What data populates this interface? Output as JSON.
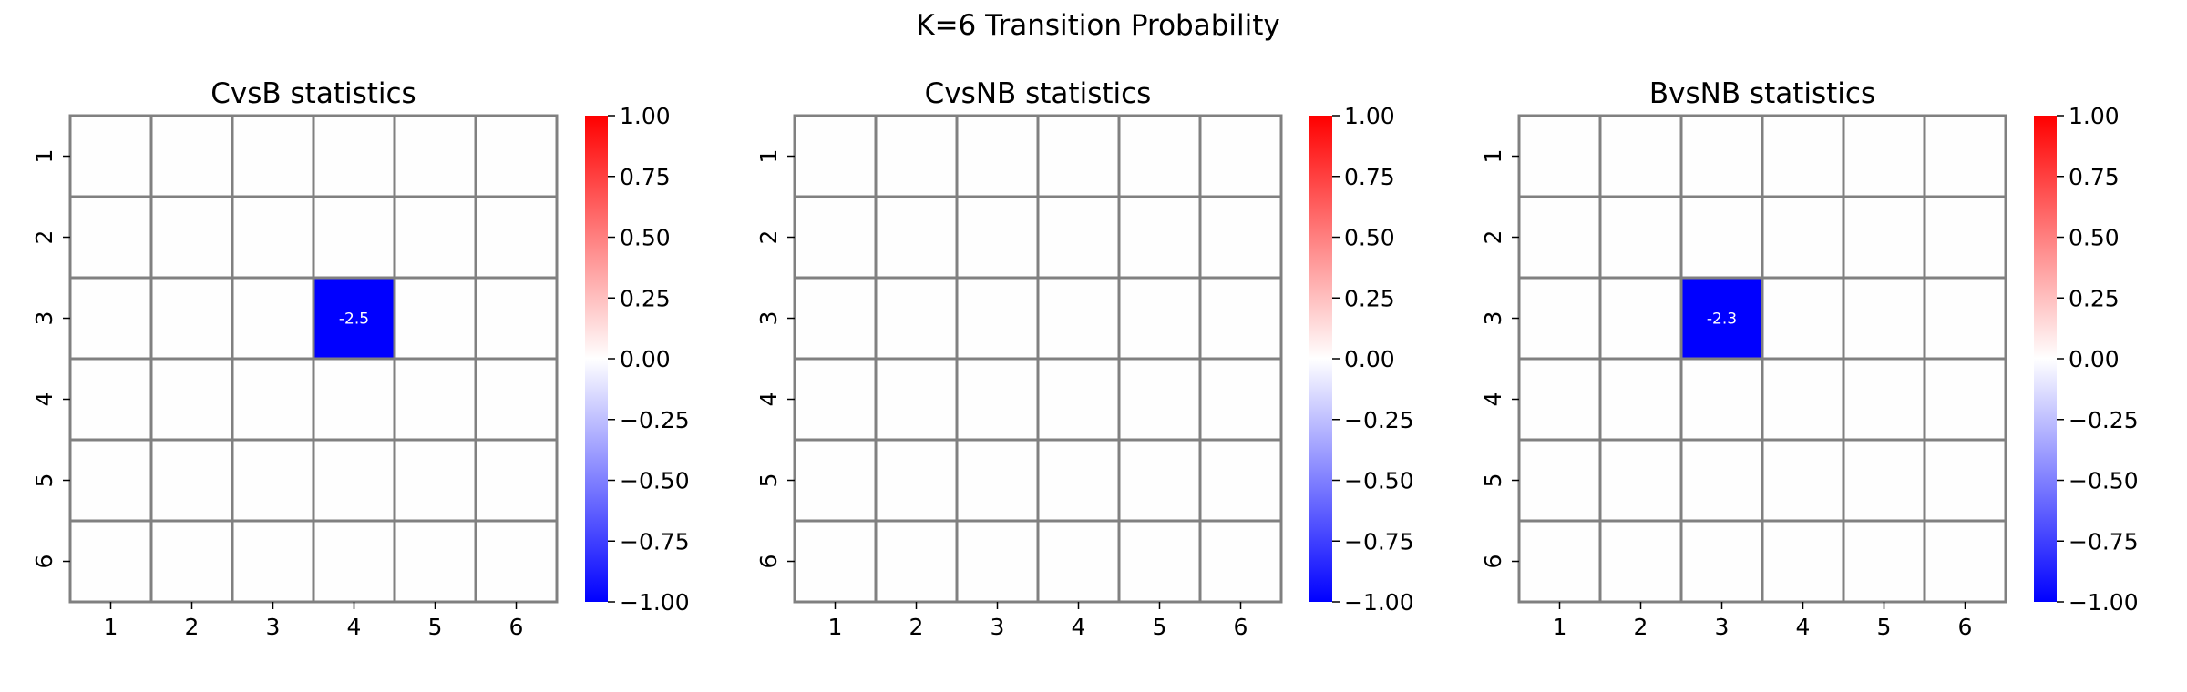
{
  "figure_title": "K=6 Transition Probability",
  "chart_data": [
    {
      "type": "heatmap",
      "title": "CvsB statistics",
      "x_ticks": [
        "1",
        "2",
        "3",
        "4",
        "5",
        "6"
      ],
      "y_ticks": [
        "1",
        "2",
        "3",
        "4",
        "5",
        "6"
      ],
      "cells": [
        {
          "row": 3,
          "col": 4,
          "value": -2.5,
          "label": "-2.5"
        }
      ],
      "color_range": [
        -1.0,
        1.0
      ],
      "colorbar_ticks": [
        "1.00",
        "0.75",
        "0.50",
        "0.25",
        "0.00",
        "−0.25",
        "−0.50",
        "−0.75",
        "−1.00"
      ],
      "colorbar_tick_values": [
        1.0,
        0.75,
        0.5,
        0.25,
        0.0,
        -0.25,
        -0.5,
        -0.75,
        -1.0
      ],
      "colormap": [
        "#0000ff",
        "#ffffff",
        "#ff0000"
      ],
      "grid_color": "#808080"
    },
    {
      "type": "heatmap",
      "title": "CvsNB statistics",
      "x_ticks": [
        "1",
        "2",
        "3",
        "4",
        "5",
        "6"
      ],
      "y_ticks": [
        "1",
        "2",
        "3",
        "4",
        "5",
        "6"
      ],
      "cells": [],
      "color_range": [
        -1.0,
        1.0
      ],
      "colorbar_ticks": [
        "1.00",
        "0.75",
        "0.50",
        "0.25",
        "0.00",
        "−0.25",
        "−0.50",
        "−0.75",
        "−1.00"
      ],
      "colorbar_tick_values": [
        1.0,
        0.75,
        0.5,
        0.25,
        0.0,
        -0.25,
        -0.5,
        -0.75,
        -1.0
      ],
      "colormap": [
        "#0000ff",
        "#ffffff",
        "#ff0000"
      ],
      "grid_color": "#808080"
    },
    {
      "type": "heatmap",
      "title": "BvsNB statistics",
      "x_ticks": [
        "1",
        "2",
        "3",
        "4",
        "5",
        "6"
      ],
      "y_ticks": [
        "1",
        "2",
        "3",
        "4",
        "5",
        "6"
      ],
      "cells": [
        {
          "row": 3,
          "col": 3,
          "value": -2.3,
          "label": "-2.3"
        }
      ],
      "color_range": [
        -1.0,
        1.0
      ],
      "colorbar_ticks": [
        "1.00",
        "0.75",
        "0.50",
        "0.25",
        "0.00",
        "−0.25",
        "−0.50",
        "−0.75",
        "−1.00"
      ],
      "colorbar_tick_values": [
        1.0,
        0.75,
        0.5,
        0.25,
        0.0,
        -0.25,
        -0.5,
        -0.75,
        -1.0
      ],
      "colormap": [
        "#0000ff",
        "#ffffff",
        "#ff0000"
      ],
      "grid_color": "#808080"
    }
  ]
}
